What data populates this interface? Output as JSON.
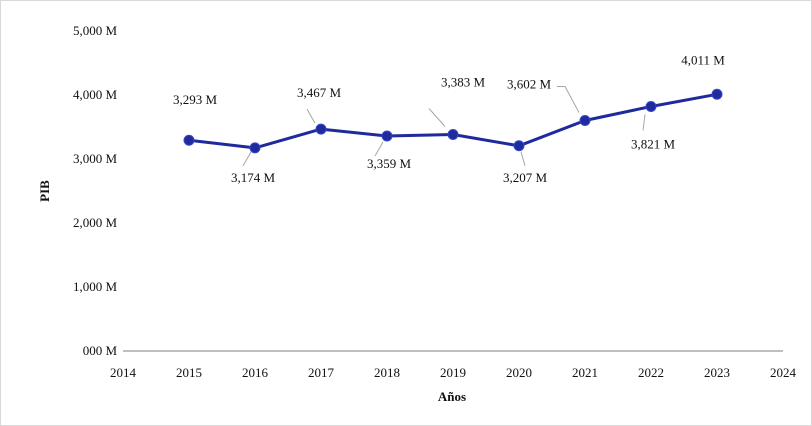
{
  "chart_data": {
    "type": "line",
    "title": "",
    "xlabel": "Años",
    "ylabel": "PIB",
    "xlim": [
      2014,
      2024
    ],
    "ylim": [
      0,
      5000
    ],
    "x_ticks": [
      "2014",
      "2015",
      "2016",
      "2017",
      "2018",
      "2019",
      "2020",
      "2021",
      "2022",
      "2023",
      "2024"
    ],
    "y_ticks": [
      "000 M",
      "1,000 M",
      "2,000 M",
      "3,000 M",
      "4,000 M",
      "5,000 M"
    ],
    "grid": false,
    "legend": "none",
    "series": [
      {
        "color": "#1f2a9c",
        "points": [
          {
            "x": 2015,
            "y": 3293,
            "label": "3,293 M"
          },
          {
            "x": 2016,
            "y": 3174,
            "label": "3,174 M"
          },
          {
            "x": 2017,
            "y": 3467,
            "label": "3,467 M"
          },
          {
            "x": 2018,
            "y": 3359,
            "label": "3,359 M"
          },
          {
            "x": 2019,
            "y": 3383,
            "label": "3,383 M"
          },
          {
            "x": 2020,
            "y": 3207,
            "label": "3,207 M"
          },
          {
            "x": 2021,
            "y": 3602,
            "label": "3,602 M"
          },
          {
            "x": 2022,
            "y": 3821,
            "label": "3,821 M"
          },
          {
            "x": 2023,
            "y": 4011,
            "label": "4,011 M"
          }
        ]
      }
    ]
  }
}
